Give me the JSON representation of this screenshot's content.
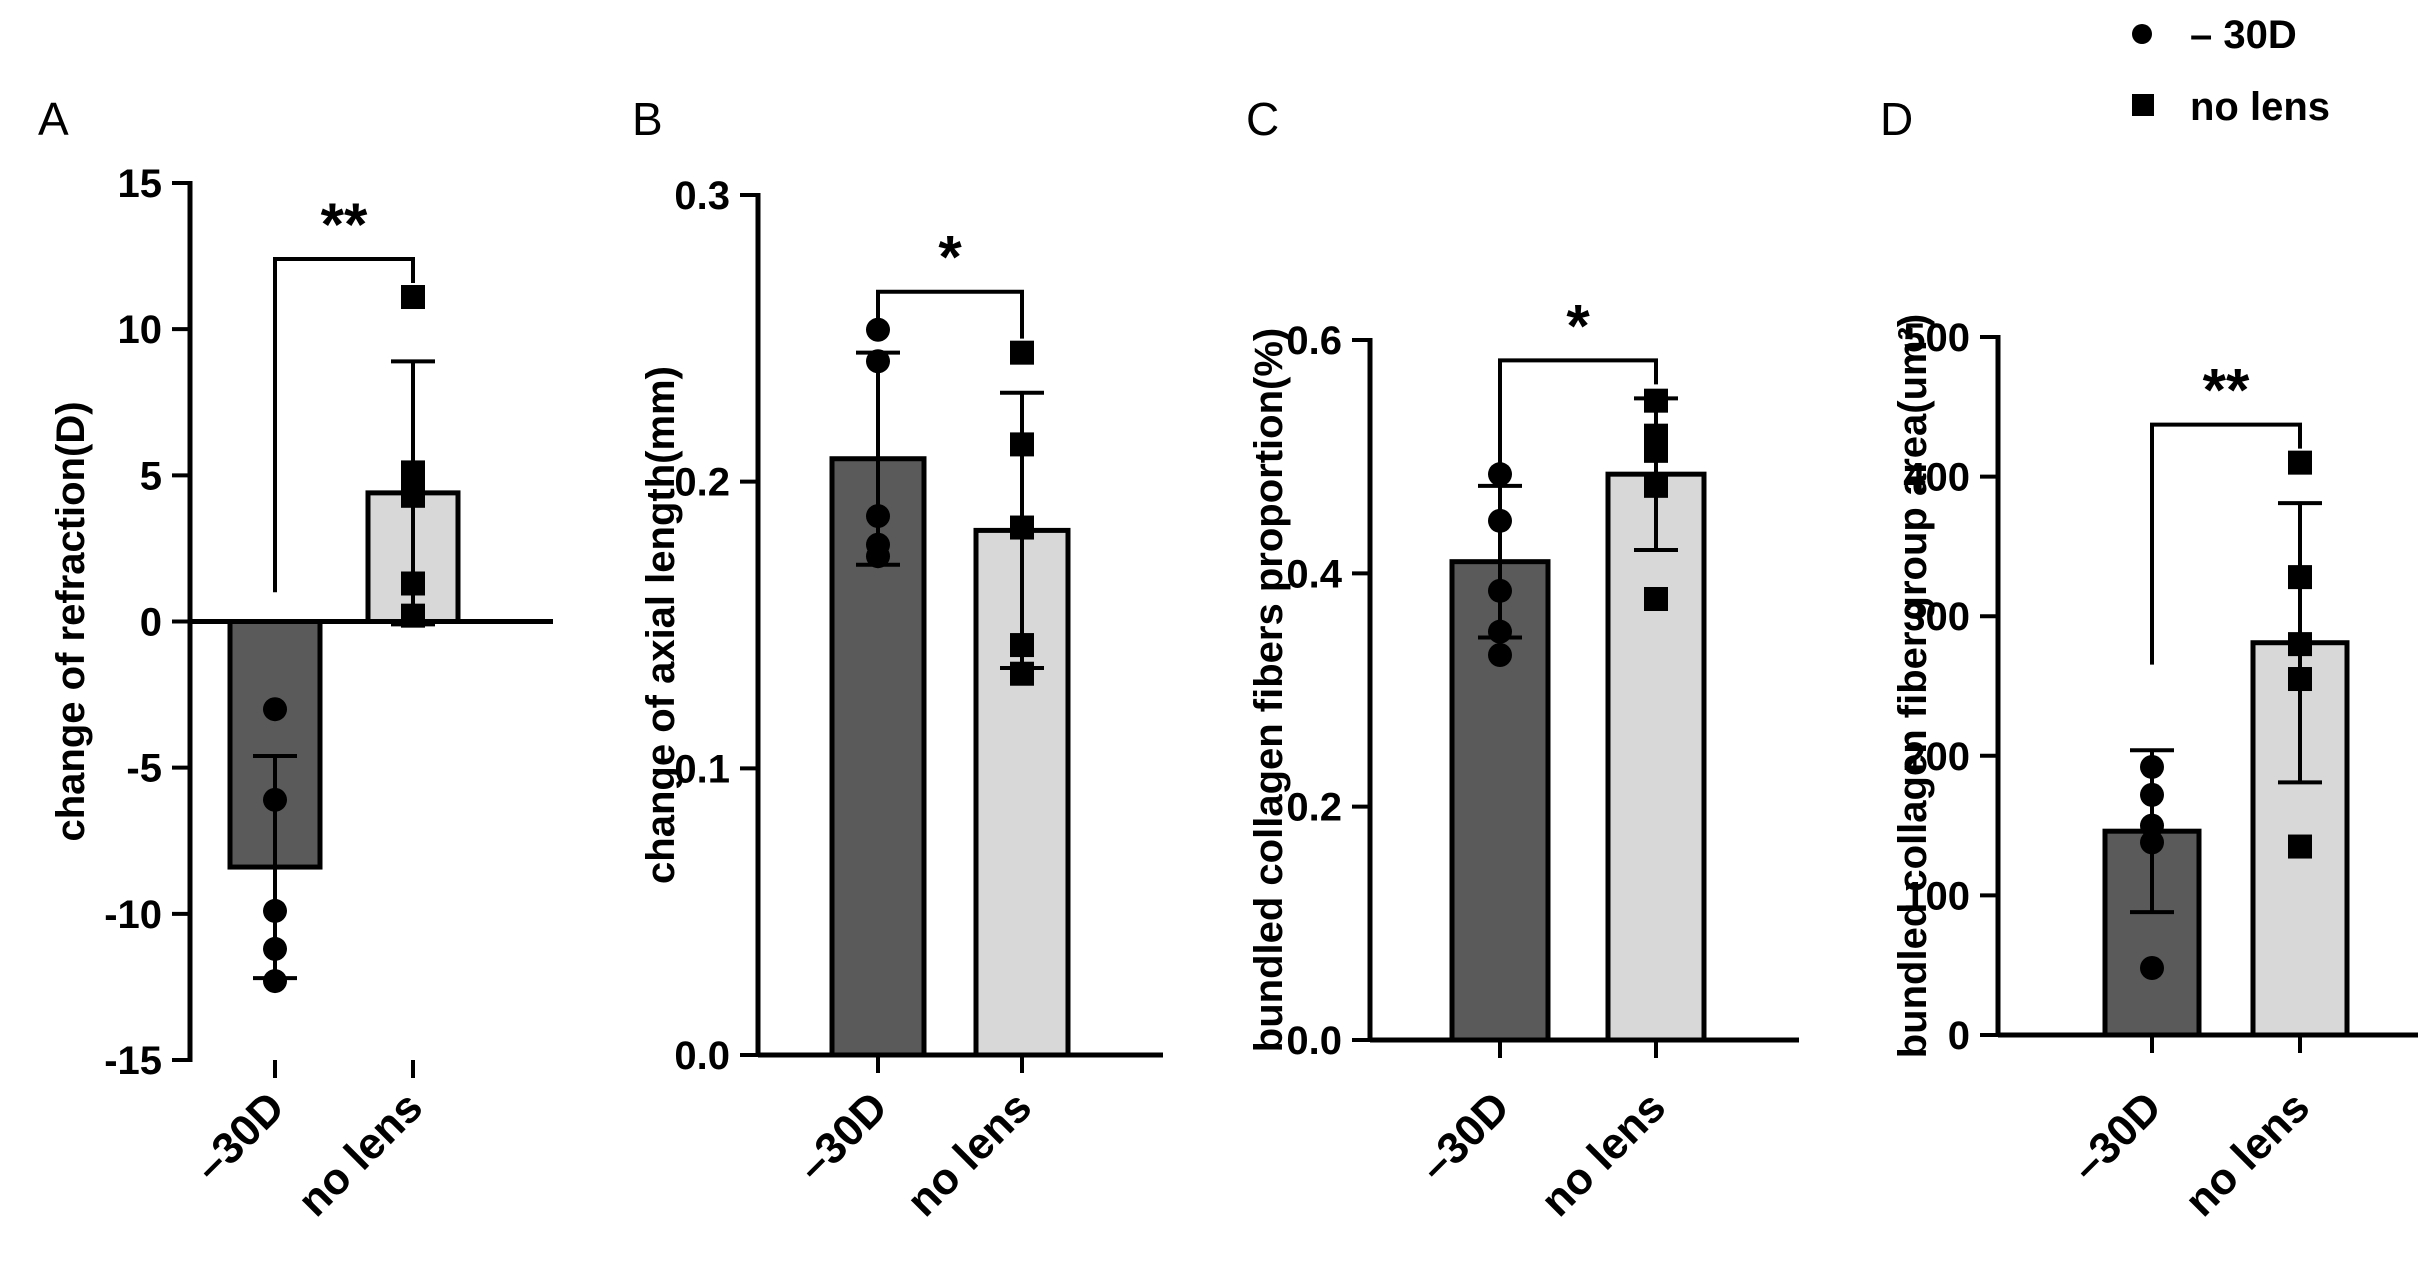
{
  "chart_data": [
    {
      "type": "bar",
      "panel": "A",
      "categories": [
        "–30D",
        "no lens"
      ],
      "values": [
        -8.4,
        4.4
      ],
      "errors": [
        3.8,
        4.5
      ],
      "points": [
        [
          -3.0,
          -6.1,
          -9.9,
          -11.2,
          -12.3
        ],
        [
          11.1,
          5.1,
          4.3,
          1.3,
          0.2
        ]
      ],
      "ylabel": "change of refraction(D)",
      "ylim": [
        -15,
        15
      ],
      "yticks": [
        15,
        10,
        5,
        0,
        -5,
        -10,
        -15
      ],
      "ytick_labels": [
        "15",
        "10",
        "5",
        "0",
        "-5",
        "-10",
        "-15"
      ],
      "significance": "**",
      "bar_colors": [
        "#5a5a5a",
        "#d8d8d8"
      ]
    },
    {
      "type": "bar",
      "panel": "B",
      "categories": [
        "–30D",
        "no lens"
      ],
      "values": [
        0.208,
        0.183
      ],
      "errors": [
        0.037,
        0.048
      ],
      "points": [
        [
          0.253,
          0.242,
          0.188,
          0.178,
          0.174
        ],
        [
          0.245,
          0.213,
          0.184,
          0.143,
          0.133
        ]
      ],
      "ylabel": "change of axial length(mm)",
      "ylim": [
        0.0,
        0.3
      ],
      "yticks": [
        0.3,
        0.2,
        0.1,
        0.0
      ],
      "ytick_labels": [
        "0.3",
        "0.2",
        "0.1",
        "0.0"
      ],
      "significance": "*",
      "bar_colors": [
        "#5a5a5a",
        "#d8d8d8"
      ]
    },
    {
      "type": "bar",
      "panel": "C",
      "categories": [
        "–30D",
        "no lens"
      ],
      "values": [
        0.41,
        0.485
      ],
      "errors": [
        0.065,
        0.065
      ],
      "points": [
        [
          0.485,
          0.445,
          0.385,
          0.35,
          0.33
        ],
        [
          0.548,
          0.518,
          0.505,
          0.475,
          0.378
        ]
      ],
      "ylabel": "bundled collagen fibers proportion(%)",
      "ylim": [
        0.0,
        0.6
      ],
      "yticks": [
        0.6,
        0.4,
        0.2,
        0.0
      ],
      "ytick_labels": [
        "0.6",
        "0.4",
        "0.2",
        "0.0"
      ],
      "significance": "*",
      "bar_colors": [
        "#5a5a5a",
        "#d8d8d8"
      ]
    },
    {
      "type": "bar",
      "panel": "D",
      "categories": [
        "–30D",
        "no lens"
      ],
      "values": [
        146,
        281
      ],
      "errors": [
        58,
        100
      ],
      "points": [
        [
          192,
          172,
          150,
          138,
          48
        ],
        [
          410,
          328,
          280,
          255,
          135
        ]
      ],
      "ylabel": "bundled collagen fiber group area(um²)",
      "ylim": [
        0,
        500
      ],
      "yticks": [
        500,
        400,
        300,
        200,
        100,
        0
      ],
      "ytick_labels": [
        "500",
        "400",
        "300",
        "200",
        "100",
        "0"
      ],
      "significance": "**",
      "bar_colors": [
        "#5a5a5a",
        "#d8d8d8"
      ]
    }
  ],
  "legend": [
    {
      "label": "– 30D",
      "marker": "circle"
    },
    {
      "label": "no lens",
      "marker": "square"
    }
  ]
}
